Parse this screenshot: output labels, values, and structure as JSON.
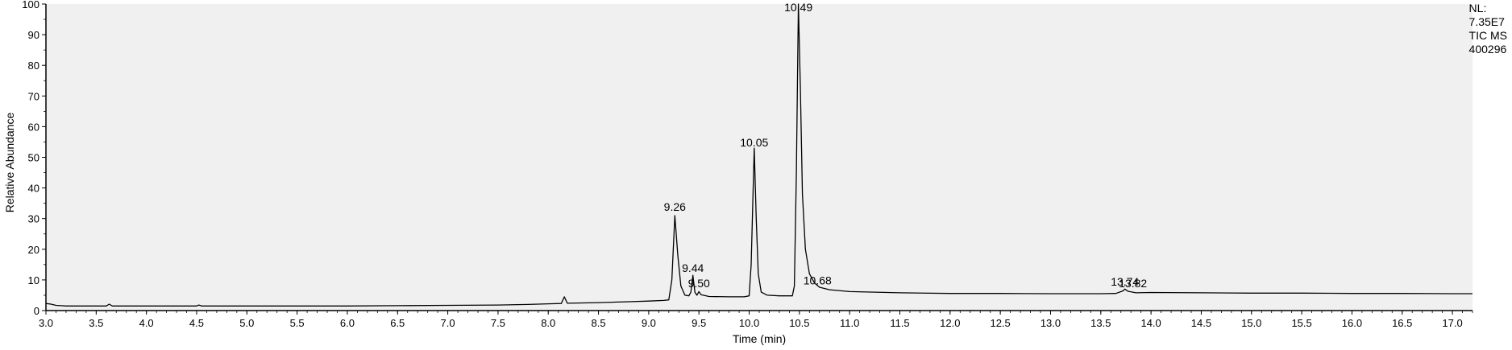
{
  "chart_data": {
    "type": "line",
    "xlabel": "Time (min)",
    "ylabel": "Relative Abundance",
    "xlim": [
      3.0,
      17.2
    ],
    "ylim": [
      0,
      100
    ],
    "x_ticks": [
      "3.0",
      "3.5",
      "4.0",
      "4.5",
      "5.0",
      "5.5",
      "6.0",
      "6.5",
      "7.0",
      "7.5",
      "8.0",
      "8.5",
      "9.0",
      "9.5",
      "10.0",
      "10.5",
      "11.0",
      "11.5",
      "12.0",
      "12.5",
      "13.0",
      "13.5",
      "14.0",
      "14.5",
      "15.0",
      "15.5",
      "16.0",
      "16.5",
      "17.0"
    ],
    "y_ticks": [
      "0",
      "10",
      "20",
      "30",
      "40",
      "50",
      "60",
      "70",
      "80",
      "90",
      "100"
    ],
    "grid": false,
    "info": {
      "nl_label": "NL:",
      "nl_value": "7.35E7",
      "trace_label": "TIC  MS",
      "sample_id": "400296"
    },
    "peak_labels": [
      {
        "time": 9.26,
        "label": "9.26",
        "abundance": 31
      },
      {
        "time": 9.44,
        "label": "9.44",
        "abundance": 11
      },
      {
        "time": 9.5,
        "label": "9.50",
        "abundance": 6
      },
      {
        "time": 10.05,
        "label": "10.05",
        "abundance": 52
      },
      {
        "time": 10.49,
        "label": "10.49",
        "abundance": 100
      },
      {
        "time": 10.68,
        "label": "10.68",
        "abundance": 7
      },
      {
        "time": 13.74,
        "label": "13.74",
        "abundance": 6.5
      },
      {
        "time": 13.82,
        "label": "13.82",
        "abundance": 6
      }
    ],
    "series": [
      {
        "color": "#000000",
        "points": [
          [
            3.0,
            2.3
          ],
          [
            3.05,
            2.1
          ],
          [
            3.1,
            1.7
          ],
          [
            3.15,
            1.6
          ],
          [
            3.2,
            1.5
          ],
          [
            3.6,
            1.5
          ],
          [
            3.63,
            2.1
          ],
          [
            3.66,
            1.5
          ],
          [
            4.0,
            1.5
          ],
          [
            4.5,
            1.5
          ],
          [
            4.52,
            1.8
          ],
          [
            4.55,
            1.5
          ],
          [
            5.0,
            1.5
          ],
          [
            5.5,
            1.5
          ],
          [
            6.0,
            1.5
          ],
          [
            6.5,
            1.6
          ],
          [
            7.0,
            1.7
          ],
          [
            7.5,
            1.8
          ],
          [
            7.8,
            2.0
          ],
          [
            8.0,
            2.2
          ],
          [
            8.13,
            2.3
          ],
          [
            8.16,
            4.5
          ],
          [
            8.19,
            2.4
          ],
          [
            8.5,
            2.6
          ],
          [
            8.8,
            2.9
          ],
          [
            9.0,
            3.1
          ],
          [
            9.15,
            3.3
          ],
          [
            9.2,
            3.5
          ],
          [
            9.23,
            10
          ],
          [
            9.26,
            31
          ],
          [
            9.29,
            18
          ],
          [
            9.32,
            8
          ],
          [
            9.36,
            5
          ],
          [
            9.4,
            4.8
          ],
          [
            9.42,
            6
          ],
          [
            9.44,
            11.5
          ],
          [
            9.46,
            6
          ],
          [
            9.48,
            5
          ],
          [
            9.5,
            6.2
          ],
          [
            9.52,
            5.2
          ],
          [
            9.6,
            4.6
          ],
          [
            9.8,
            4.5
          ],
          [
            9.95,
            4.5
          ],
          [
            10.0,
            4.8
          ],
          [
            10.02,
            15
          ],
          [
            10.05,
            53
          ],
          [
            10.07,
            30
          ],
          [
            10.09,
            12
          ],
          [
            10.12,
            6
          ],
          [
            10.18,
            5
          ],
          [
            10.3,
            4.8
          ],
          [
            10.43,
            4.8
          ],
          [
            10.45,
            8
          ],
          [
            10.47,
            45
          ],
          [
            10.49,
            100
          ],
          [
            10.51,
            72
          ],
          [
            10.53,
            38
          ],
          [
            10.56,
            20
          ],
          [
            10.6,
            12
          ],
          [
            10.65,
            9
          ],
          [
            10.7,
            7.6
          ],
          [
            10.8,
            6.8
          ],
          [
            11.0,
            6.2
          ],
          [
            11.5,
            5.8
          ],
          [
            12.0,
            5.6
          ],
          [
            12.5,
            5.6
          ],
          [
            13.0,
            5.5
          ],
          [
            13.5,
            5.5
          ],
          [
            13.65,
            5.6
          ],
          [
            13.72,
            6.4
          ],
          [
            13.74,
            7
          ],
          [
            13.77,
            6.3
          ],
          [
            13.85,
            5.8
          ],
          [
            14.0,
            5.9
          ],
          [
            14.5,
            5.8
          ],
          [
            15.0,
            5.7
          ],
          [
            15.5,
            5.7
          ],
          [
            16.0,
            5.6
          ],
          [
            16.5,
            5.6
          ],
          [
            17.0,
            5.5
          ],
          [
            17.2,
            5.5
          ]
        ]
      }
    ]
  }
}
